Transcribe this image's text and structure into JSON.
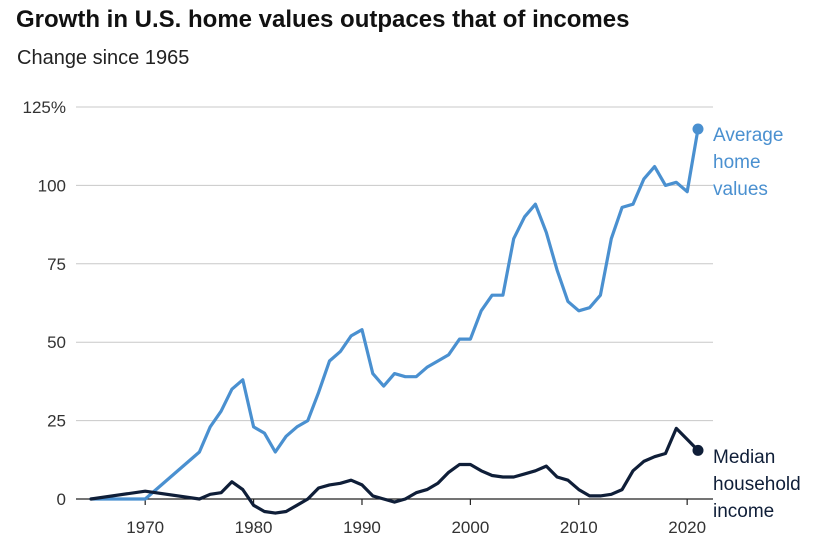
{
  "chart_data": {
    "type": "line",
    "title": "Growth in U.S. home values outpaces that of incomes",
    "subtitle": "Change since 1965",
    "xlabel": "",
    "ylabel": "",
    "xlim": [
      1965,
      2021
    ],
    "ylim": [
      0,
      125
    ],
    "y_ticks": [
      0,
      25,
      50,
      75,
      100,
      125
    ],
    "y_tick_labels": [
      "0",
      "25",
      "50",
      "75",
      "100",
      "125%"
    ],
    "x_ticks": [
      1970,
      1980,
      1990,
      2000,
      2010,
      2020
    ],
    "x_tick_labels": [
      "1970",
      "1980",
      "1990",
      "2000",
      "2010",
      "2020"
    ],
    "grid": true,
    "series": [
      {
        "name": "Average home values",
        "label_lines": [
          "Average",
          "home",
          "values"
        ],
        "color": "#4a90d0",
        "x": [
          1965,
          1970,
          1975,
          1976,
          1977,
          1978,
          1979,
          1980,
          1981,
          1982,
          1983,
          1984,
          1985,
          1986,
          1987,
          1988,
          1989,
          1990,
          1991,
          1992,
          1993,
          1994,
          1995,
          1996,
          1997,
          1998,
          1999,
          2000,
          2001,
          2002,
          2003,
          2004,
          2005,
          2006,
          2007,
          2008,
          2009,
          2010,
          2011,
          2012,
          2013,
          2014,
          2015,
          2016,
          2017,
          2018,
          2019,
          2020,
          2021
        ],
        "values": [
          0,
          0,
          15,
          23,
          28,
          35,
          38,
          23,
          21,
          15,
          20,
          23,
          25,
          34,
          44,
          47,
          52,
          54,
          40,
          36,
          40,
          39,
          39,
          42,
          44,
          46,
          51,
          51,
          60,
          65,
          65,
          83,
          90,
          94,
          85,
          73,
          63,
          60,
          61,
          65,
          83,
          93,
          94,
          102,
          106,
          100,
          101,
          98,
          118
        ]
      },
      {
        "name": "Median household income",
        "label_lines": [
          "Median",
          "household",
          "income"
        ],
        "color": "#0f1e38",
        "x": [
          1965,
          1970,
          1975,
          1976,
          1977,
          1978,
          1979,
          1980,
          1981,
          1982,
          1983,
          1984,
          1985,
          1986,
          1987,
          1988,
          1989,
          1990,
          1991,
          1992,
          1993,
          1994,
          1995,
          1996,
          1997,
          1998,
          1999,
          2000,
          2001,
          2002,
          2003,
          2004,
          2005,
          2006,
          2007,
          2008,
          2009,
          2010,
          2011,
          2012,
          2013,
          2014,
          2015,
          2016,
          2017,
          2018,
          2019,
          2020,
          2021
        ],
        "values": [
          0,
          2.5,
          0,
          1.5,
          2,
          5.5,
          3,
          -2,
          -4,
          -4.5,
          -4,
          -2,
          0,
          3.5,
          4.5,
          5,
          6,
          4.5,
          1,
          0,
          -1,
          0,
          2,
          3,
          5,
          8.5,
          11,
          11,
          9,
          7.5,
          7,
          7,
          8,
          9,
          10.5,
          7,
          6,
          3,
          1,
          1,
          1.5,
          3,
          9,
          12,
          13.5,
          14.5,
          22.5,
          19,
          15.5
        ]
      }
    ]
  }
}
